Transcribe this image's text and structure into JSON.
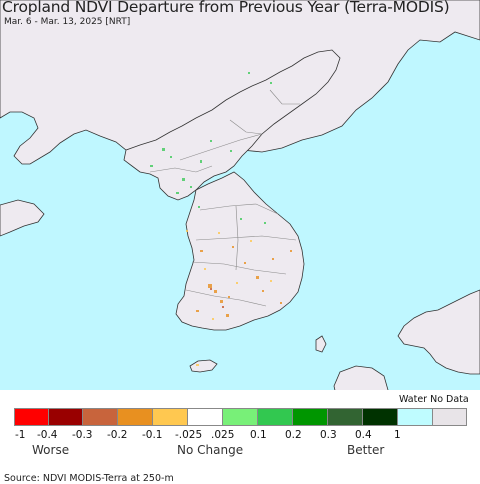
{
  "title": "Cropland NDVI Departure from Previous Year (Terra-MODIS)",
  "subtitle": "Mar. 6 - Mar. 13, 2025 [NRT]",
  "colors": {
    "ocean": "#bff7ff",
    "land": "#eeeaf0",
    "border": "#8a8a8a",
    "coast": "#333333"
  },
  "legend": {
    "water_nodata_label": "Water No Data",
    "swatches": [
      {
        "color": "#ff0000"
      },
      {
        "color": "#990000"
      },
      {
        "color": "#c8643c"
      },
      {
        "color": "#e89020"
      },
      {
        "color": "#ffc850"
      },
      {
        "color": "#ffffff"
      },
      {
        "color": "#78f078"
      },
      {
        "color": "#32c850"
      },
      {
        "color": "#009600"
      },
      {
        "color": "#326432"
      },
      {
        "color": "#003200"
      },
      {
        "color": "#bffcff"
      },
      {
        "color": "#e8e4e8"
      }
    ],
    "ticks": [
      "-1",
      "-0.4",
      "-0.3",
      "-0.2",
      "-0.1",
      "-.025",
      ".025",
      "0.1",
      "0.2",
      "0.3",
      "0.4",
      "1"
    ],
    "categories": {
      "worse": "Worse",
      "no_change": "No Change",
      "better": "Better"
    }
  },
  "source": "Source: NDVI MODIS-Terra at 250-m"
}
